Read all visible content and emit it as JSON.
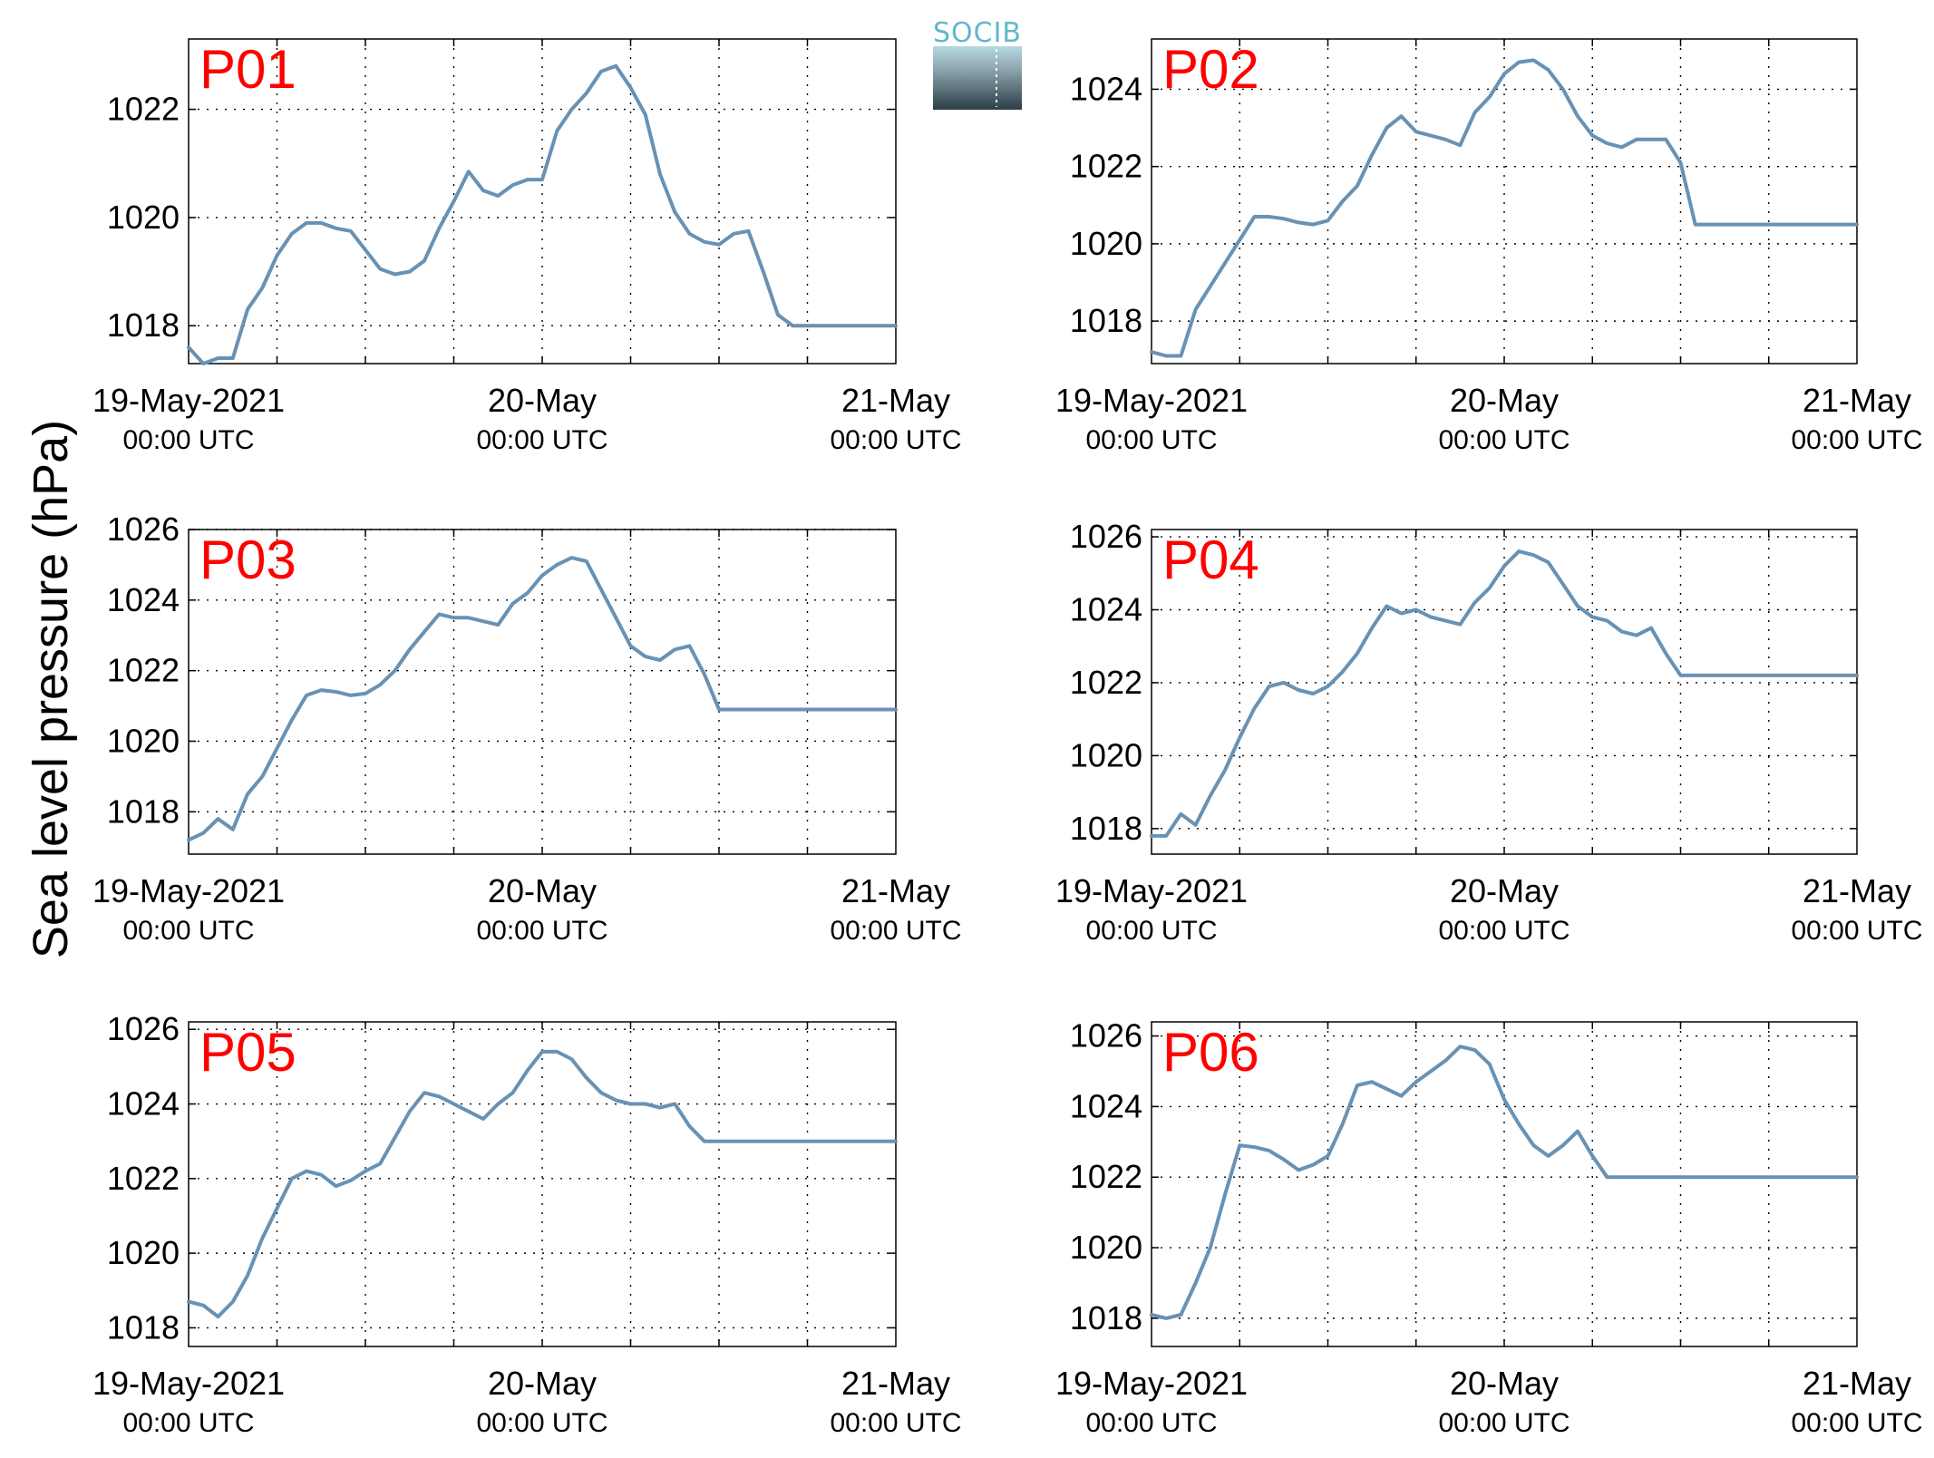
{
  "figure": {
    "ylabel": "Sea level pressure (hPa)",
    "logo_text": "SOCIB",
    "colors": {
      "line": "#6892b4",
      "panel_label": "#ff0000",
      "grid": "#000000"
    }
  },
  "chart_data": [
    {
      "type": "line",
      "label": "P01",
      "x_ticks": [
        {
          "value": 0,
          "label": "19-May-2021",
          "sub": "00:00 UTC"
        },
        {
          "value": 24,
          "label": "20-May",
          "sub": "00:00 UTC"
        },
        {
          "value": 48,
          "label": "21-May",
          "sub": "00:00 UTC"
        }
      ],
      "x_unit": "hours since 19-May-2021 00:00 UTC",
      "xlim": [
        0,
        48
      ],
      "ylim": [
        1017.3,
        1023.3
      ],
      "yticks": [
        1018,
        1020,
        1022
      ],
      "x": [
        0,
        1,
        2,
        3,
        4,
        5,
        6,
        7,
        8,
        9,
        10,
        11,
        12,
        13,
        14,
        15,
        16,
        17,
        18,
        19,
        20,
        21,
        22,
        23,
        24,
        25,
        26,
        27,
        28,
        29,
        30,
        31,
        32,
        33,
        34,
        35,
        36,
        37,
        38,
        39,
        40,
        41,
        42,
        43,
        44,
        45,
        46,
        47,
        48
      ],
      "values": [
        1017.6,
        1017.3,
        1017.4,
        1017.4,
        1018.3,
        1018.7,
        1019.3,
        1019.7,
        1019.9,
        1019.9,
        1019.8,
        1019.75,
        1019.4,
        1019.05,
        1018.95,
        1019.0,
        1019.2,
        1019.8,
        1020.3,
        1020.85,
        1020.5,
        1020.4,
        1020.6,
        1020.7,
        1020.7,
        1021.6,
        1022.0,
        1022.3,
        1022.7,
        1022.8,
        1022.4,
        1021.9,
        1020.8,
        1020.1,
        1019.7,
        1019.55,
        1019.5,
        1019.7,
        1019.75,
        1019.0,
        1018.2,
        1018.0,
        1018.0,
        1018.0,
        1018.0,
        1018.0,
        1018.0,
        1018.0,
        1018.0
      ]
    },
    {
      "type": "line",
      "label": "P02",
      "x_ticks": [
        {
          "value": 0,
          "label": "19-May-2021",
          "sub": "00:00 UTC"
        },
        {
          "value": 24,
          "label": "20-May",
          "sub": "00:00 UTC"
        },
        {
          "value": 48,
          "label": "21-May",
          "sub": "00:00 UTC"
        }
      ],
      "x_unit": "hours since 19-May-2021 00:00 UTC",
      "xlim": [
        0,
        48
      ],
      "ylim": [
        1016.9,
        1025.3
      ],
      "yticks": [
        1018,
        1020,
        1022,
        1024
      ],
      "x": [
        0,
        1,
        2,
        3,
        4,
        5,
        6,
        7,
        8,
        9,
        10,
        11,
        12,
        13,
        14,
        15,
        16,
        17,
        18,
        19,
        20,
        21,
        22,
        23,
        24,
        25,
        26,
        27,
        28,
        29,
        30,
        31,
        32,
        33,
        34,
        35,
        36,
        37,
        38,
        39,
        40,
        41,
        42,
        43,
        44,
        45,
        46,
        47,
        48
      ],
      "values": [
        1017.2,
        1017.1,
        1017.1,
        1018.3,
        1018.9,
        1019.5,
        1020.1,
        1020.7,
        1020.7,
        1020.65,
        1020.55,
        1020.5,
        1020.6,
        1021.1,
        1021.5,
        1022.3,
        1023.0,
        1023.3,
        1022.9,
        1022.8,
        1022.7,
        1022.55,
        1023.4,
        1023.8,
        1024.4,
        1024.7,
        1024.75,
        1024.5,
        1024.0,
        1023.3,
        1022.8,
        1022.6,
        1022.5,
        1022.7,
        1022.7,
        1022.7,
        1022.1,
        1020.5,
        1020.5,
        1020.5,
        1020.5,
        1020.5,
        1020.5,
        1020.5,
        1020.5,
        1020.5,
        1020.5,
        1020.5,
        1020.5
      ]
    },
    {
      "type": "line",
      "label": "P03",
      "x_ticks": [
        {
          "value": 0,
          "label": "19-May-2021",
          "sub": "00:00 UTC"
        },
        {
          "value": 24,
          "label": "20-May",
          "sub": "00:00 UTC"
        },
        {
          "value": 48,
          "label": "21-May",
          "sub": "00:00 UTC"
        }
      ],
      "x_unit": "hours since 19-May-2021 00:00 UTC",
      "xlim": [
        0,
        48
      ],
      "ylim": [
        1016.8,
        1026.0
      ],
      "yticks": [
        1018,
        1020,
        1022,
        1024,
        1026
      ],
      "x": [
        0,
        1,
        2,
        3,
        4,
        5,
        6,
        7,
        8,
        9,
        10,
        11,
        12,
        13,
        14,
        15,
        16,
        17,
        18,
        19,
        20,
        21,
        22,
        23,
        24,
        25,
        26,
        27,
        28,
        29,
        30,
        31,
        32,
        33,
        34,
        35,
        36,
        37,
        38,
        39,
        40,
        41,
        42,
        43,
        44,
        45,
        46,
        47,
        48
      ],
      "values": [
        1017.2,
        1017.4,
        1017.8,
        1017.5,
        1018.5,
        1019.0,
        1019.8,
        1020.6,
        1021.3,
        1021.45,
        1021.4,
        1021.3,
        1021.35,
        1021.6,
        1022.0,
        1022.6,
        1023.1,
        1023.6,
        1023.5,
        1023.5,
        1023.4,
        1023.3,
        1023.9,
        1024.2,
        1024.7,
        1025.0,
        1025.2,
        1025.1,
        1024.3,
        1023.5,
        1022.7,
        1022.4,
        1022.3,
        1022.6,
        1022.7,
        1021.9,
        1020.9,
        1020.9,
        1020.9,
        1020.9,
        1020.9,
        1020.9,
        1020.9,
        1020.9,
        1020.9,
        1020.9,
        1020.9,
        1020.9,
        1020.9
      ]
    },
    {
      "type": "line",
      "label": "P04",
      "x_ticks": [
        {
          "value": 0,
          "label": "19-May-2021",
          "sub": "00:00 UTC"
        },
        {
          "value": 24,
          "label": "20-May",
          "sub": "00:00 UTC"
        },
        {
          "value": 48,
          "label": "21-May",
          "sub": "00:00 UTC"
        }
      ],
      "x_unit": "hours since 19-May-2021 00:00 UTC",
      "xlim": [
        0,
        48
      ],
      "ylim": [
        1017.3,
        1026.2
      ],
      "yticks": [
        1018,
        1020,
        1022,
        1024,
        1026
      ],
      "x": [
        0,
        1,
        2,
        3,
        4,
        5,
        6,
        7,
        8,
        9,
        10,
        11,
        12,
        13,
        14,
        15,
        16,
        17,
        18,
        19,
        20,
        21,
        22,
        23,
        24,
        25,
        26,
        27,
        28,
        29,
        30,
        31,
        32,
        33,
        34,
        35,
        36,
        37,
        38,
        39,
        40,
        41,
        42,
        43,
        44,
        45,
        46,
        47,
        48
      ],
      "values": [
        1017.8,
        1017.8,
        1018.4,
        1018.1,
        1018.9,
        1019.6,
        1020.5,
        1021.3,
        1021.9,
        1022.0,
        1021.8,
        1021.7,
        1021.9,
        1022.3,
        1022.8,
        1023.5,
        1024.1,
        1023.9,
        1024.0,
        1023.8,
        1023.7,
        1023.6,
        1024.2,
        1024.6,
        1025.2,
        1025.6,
        1025.5,
        1025.3,
        1024.7,
        1024.1,
        1023.8,
        1023.7,
        1023.4,
        1023.3,
        1023.5,
        1022.8,
        1022.2,
        1022.2,
        1022.2,
        1022.2,
        1022.2,
        1022.2,
        1022.2,
        1022.2,
        1022.2,
        1022.2,
        1022.2,
        1022.2,
        1022.2
      ]
    },
    {
      "type": "line",
      "label": "P05",
      "x_ticks": [
        {
          "value": 0,
          "label": "19-May-2021",
          "sub": "00:00 UTC"
        },
        {
          "value": 24,
          "label": "20-May",
          "sub": "00:00 UTC"
        },
        {
          "value": 48,
          "label": "21-May",
          "sub": "00:00 UTC"
        }
      ],
      "x_unit": "hours since 19-May-2021 00:00 UTC",
      "xlim": [
        0,
        48
      ],
      "ylim": [
        1017.5,
        1026.2
      ],
      "yticks": [
        1018,
        1020,
        1022,
        1024,
        1026
      ],
      "x": [
        0,
        1,
        2,
        3,
        4,
        5,
        6,
        7,
        8,
        9,
        10,
        11,
        12,
        13,
        14,
        15,
        16,
        17,
        18,
        19,
        20,
        21,
        22,
        23,
        24,
        25,
        26,
        27,
        28,
        29,
        30,
        31,
        32,
        33,
        34,
        35,
        36,
        37,
        38,
        39,
        40,
        41,
        42,
        43,
        44,
        45,
        46,
        47,
        48
      ],
      "values": [
        1018.7,
        1018.6,
        1018.3,
        1018.7,
        1019.4,
        1020.4,
        1021.2,
        1022.0,
        1022.2,
        1022.1,
        1021.8,
        1021.95,
        1022.2,
        1022.4,
        1023.1,
        1023.8,
        1024.3,
        1024.2,
        1024.0,
        1023.8,
        1023.6,
        1024.0,
        1024.3,
        1024.9,
        1025.4,
        1025.4,
        1025.2,
        1024.7,
        1024.3,
        1024.1,
        1024.0,
        1024.0,
        1023.9,
        1024.0,
        1023.4,
        1023.0,
        1023.0,
        1023.0,
        1023.0,
        1023.0,
        1023.0,
        1023.0,
        1023.0,
        1023.0,
        1023.0,
        1023.0,
        1023.0,
        1023.0,
        1023.0
      ]
    },
    {
      "type": "line",
      "label": "P06",
      "x_ticks": [
        {
          "value": 0,
          "label": "19-May-2021",
          "sub": "00:00 UTC"
        },
        {
          "value": 24,
          "label": "20-May",
          "sub": "00:00 UTC"
        },
        {
          "value": 48,
          "label": "21-May",
          "sub": "00:00 UTC"
        }
      ],
      "x_unit": "hours since 19-May-2021 00:00 UTC",
      "xlim": [
        0,
        48
      ],
      "ylim": [
        1017.2,
        1026.4
      ],
      "yticks": [
        1018,
        1020,
        1022,
        1024,
        1026
      ],
      "x": [
        0,
        1,
        2,
        3,
        4,
        5,
        6,
        7,
        8,
        9,
        10,
        11,
        12,
        13,
        14,
        15,
        16,
        17,
        18,
        19,
        20,
        21,
        22,
        23,
        24,
        25,
        26,
        27,
        28,
        29,
        30,
        31,
        32,
        33,
        34,
        35,
        36,
        37,
        38,
        39,
        40,
        41,
        42,
        43,
        44,
        45,
        46,
        47,
        48
      ],
      "values": [
        1018.1,
        1018.0,
        1018.1,
        1019.0,
        1020.0,
        1021.5,
        1022.9,
        1022.85,
        1022.75,
        1022.5,
        1022.2,
        1022.35,
        1022.6,
        1023.5,
        1024.6,
        1024.7,
        1024.5,
        1024.3,
        1024.7,
        1025.0,
        1025.3,
        1025.7,
        1025.6,
        1025.2,
        1024.2,
        1023.5,
        1022.9,
        1022.6,
        1022.9,
        1023.3,
        1022.6,
        1022.0,
        1022.0,
        1022.0,
        1022.0,
        1022.0,
        1022.0,
        1022.0,
        1022.0,
        1022.0,
        1022.0,
        1022.0,
        1022.0,
        1022.0,
        1022.0,
        1022.0,
        1022.0,
        1022.0,
        1022.0
      ]
    }
  ]
}
